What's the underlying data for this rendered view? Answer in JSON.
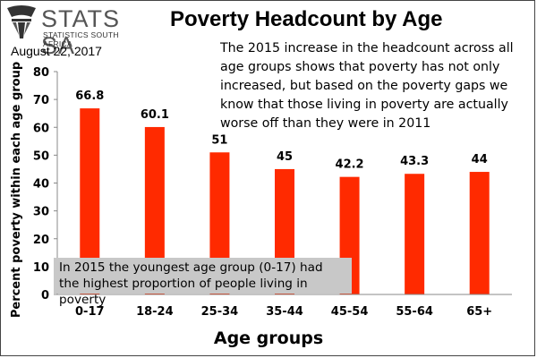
{
  "logo": {
    "name": "STATS SA",
    "subtitle": "STATISTICS SOUTH AFRICA"
  },
  "date": "August 22, 2017",
  "note": "The 2015 increase in the headcount across all age groups shows that poverty has not only increased, but based on the poverty gaps we know that those living in poverty are actually worse off than they were in 2011",
  "callout": "In 2015 the youngest age group (0-17) had the highest proportion of people living in poverty",
  "colors": {
    "bar": "#ff2a00",
    "callout_bg": "#c8c8c8"
  },
  "chart_data": {
    "type": "bar",
    "title": "Poverty Headcount by Age",
    "xlabel": "Age groups",
    "ylabel": "Percent poverty within each age group",
    "categories": [
      "0-17",
      "18-24",
      "25-34",
      "35-44",
      "45-54",
      "55-64",
      "65+"
    ],
    "values": [
      66.8,
      60.1,
      51,
      45,
      42.2,
      43.3,
      44
    ],
    "value_labels": [
      "66.8",
      "60.1",
      "51",
      "45",
      "42.2",
      "43.3",
      "44"
    ],
    "ylim": [
      0,
      80
    ],
    "yticks": [
      "0",
      "10",
      "20",
      "30",
      "40",
      "50",
      "60",
      "70",
      "80"
    ],
    "grid": false,
    "legend": "none"
  }
}
